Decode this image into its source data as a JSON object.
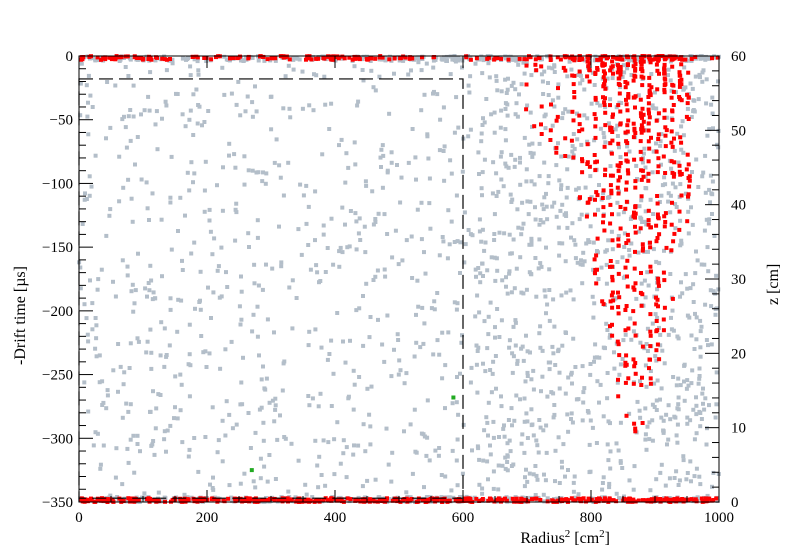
{
  "chart_data": {
    "type": "scatter",
    "title": "",
    "xlabel": "Radius",
    "xlabel_sup": "2",
    "xlabel_unit": " [cm",
    "xlabel_unit_sup": "2",
    "xlabel_close": "]",
    "ylabel": "-Drift time [µs]",
    "y2label": "z [cm]",
    "xlim": [
      0,
      1000
    ],
    "ylim": [
      -350,
      0
    ],
    "y2lim": [
      0,
      60
    ],
    "x_ticks": [
      0,
      200,
      400,
      600,
      800,
      1000
    ],
    "y_ticks": [
      0,
      -50,
      -100,
      -150,
      -200,
      -250,
      -300,
      -350
    ],
    "y_tick_labels": [
      "0",
      "−50",
      "−100",
      "−150",
      "−200",
      "−250",
      "−300",
      "−350"
    ],
    "y2_ticks": [
      0,
      10,
      20,
      30,
      40,
      50,
      60
    ],
    "fiducial_box": {
      "x": [
        0,
        600
      ],
      "y": [
        -347,
        -18
      ]
    },
    "series": [
      {
        "color": "#b3bec9",
        "marker": "square",
        "density": "uniform"
      },
      {
        "color": "#ff0000",
        "marker": "square",
        "density": "top-edge, bottom-edge, high-radius"
      },
      {
        "color": "#22aa22",
        "marker": "square",
        "points": [
          [
            270,
            -325
          ],
          [
            585,
            -268
          ]
        ]
      }
    ],
    "grid": false,
    "legend": "none"
  }
}
